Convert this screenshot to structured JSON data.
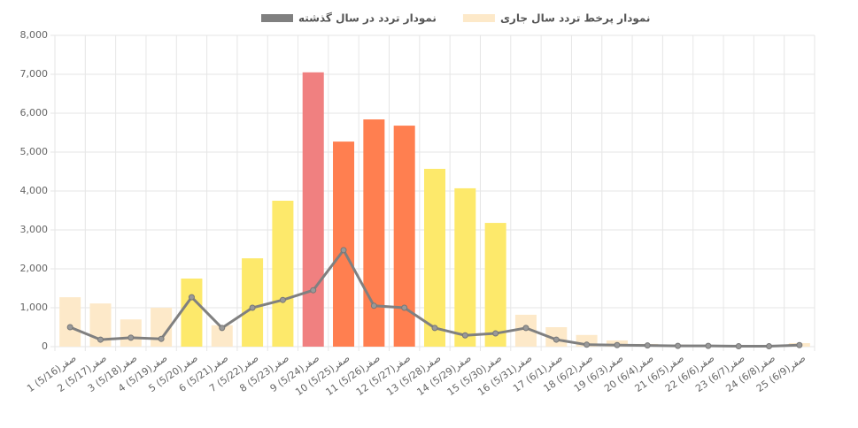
{
  "chart_data": {
    "type": "bar-line",
    "categories": [
      "1 صفر(5/16)",
      "2 صفر(5/17)",
      "3 صفر(5/18)",
      "4 صفر(5/19)",
      "5 صفر(5/20)",
      "6 صفر(5/21)",
      "7 صفر(5/22)",
      "8 صفر(5/23)",
      "9 صفر(5/24)",
      "10 صفر(5/25)",
      "11 صفر(5/26)",
      "12 صفر(5/27)",
      "13 صفر(5/28)",
      "14 صفر(5/29)",
      "15 صفر(5/30)",
      "16 صفر(5/31)",
      "17 صفر(6/1)",
      "18 صفر(6/2)",
      "19 صفر(6/3)",
      "20 صفر(6/4)",
      "21 صفر(6/5)",
      "22 صفر(6/6)",
      "23 صفر(6/7)",
      "24 صفر(6/8)",
      "25 صفر(6/9)"
    ],
    "series": [
      {
        "name": "نمودار پرخط تردد سال جاری",
        "type": "bar",
        "color": "#fde9c9",
        "colors": [
          "#fde9c9",
          "#fde9c9",
          "#fde9c9",
          "#fde9c9",
          "#fde96b",
          "#fde9c9",
          "#fde96b",
          "#fde96b",
          "#f08080",
          "#ff7f50",
          "#ff7f50",
          "#ff7f50",
          "#fde96b",
          "#fde96b",
          "#fde96b",
          "#fde9c9",
          "#fde9c9",
          "#fde9c9",
          "#fde9c9",
          "#fde9c9",
          "#fde9c9",
          "#fde9c9",
          "#fde9c9",
          "#fde9c9",
          "#fde9c9"
        ],
        "values": [
          1270,
          1110,
          700,
          1000,
          1750,
          550,
          2270,
          3750,
          7050,
          5270,
          5840,
          5680,
          4570,
          4070,
          3180,
          820,
          500,
          300,
          160,
          70,
          50,
          40,
          30,
          30,
          90
        ]
      },
      {
        "name": "نمودار تردد در سال گذشته",
        "type": "line",
        "color": "#808080",
        "values": [
          500,
          180,
          230,
          200,
          1270,
          480,
          1000,
          1200,
          1450,
          2480,
          1050,
          1000,
          480,
          290,
          340,
          480,
          180,
          50,
          40,
          30,
          20,
          20,
          10,
          10,
          40
        ]
      }
    ],
    "ylim": [
      0,
      8000
    ],
    "yticks": [
      0,
      {
        "value": 1000,
        "label": "1,000"
      },
      {
        "value": 2000,
        "label": "2,000"
      },
      {
        "value": 3000,
        "label": "3,000"
      },
      {
        "value": 4000,
        "label": "4,000"
      },
      {
        "value": 5000,
        "label": "5,000"
      },
      {
        "value": 6000,
        "label": "6,000"
      },
      {
        "value": 7000,
        "label": "7,000"
      },
      {
        "value": 8000,
        "label": "8,000"
      }
    ],
    "grid": true
  }
}
